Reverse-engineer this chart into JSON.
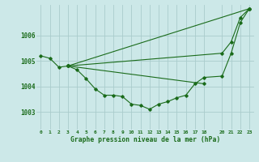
{
  "xlabel": "Graphe pression niveau de la mer (hPa)",
  "background_color": "#cce8e8",
  "grid_color": "#aacccc",
  "line_color": "#1a6b1a",
  "ylim": [
    1002.3,
    1007.2
  ],
  "xlim": [
    -0.5,
    23.5
  ],
  "yticks": [
    1003,
    1004,
    1005,
    1006
  ],
  "xticks": [
    0,
    1,
    2,
    3,
    4,
    5,
    6,
    7,
    8,
    9,
    10,
    11,
    12,
    13,
    14,
    15,
    16,
    17,
    18,
    20,
    21,
    22,
    23
  ],
  "xtick_labels": [
    "0",
    "1",
    "2",
    "3",
    "4",
    "5",
    "6",
    "7",
    "8",
    "9",
    "10",
    "11",
    "12",
    "13",
    "14",
    "15",
    "16",
    "17",
    "18",
    "20",
    "21",
    "22",
    "23"
  ],
  "series": [
    {
      "x": [
        0,
        1,
        2,
        3,
        20,
        21,
        22,
        23
      ],
      "y": [
        1005.2,
        1005.1,
        1004.75,
        1004.8,
        1005.3,
        1005.75,
        1006.7,
        1007.05
      ]
    },
    {
      "x": [
        3,
        4,
        5,
        6,
        7,
        8,
        9,
        10,
        11,
        12,
        13,
        14,
        15,
        16,
        17,
        18,
        20,
        21,
        22,
        23
      ],
      "y": [
        1004.8,
        1004.65,
        1004.3,
        1003.9,
        1003.65,
        1003.65,
        1003.6,
        1003.3,
        1003.25,
        1003.1,
        1003.3,
        1003.4,
        1003.55,
        1003.65,
        1004.1,
        1004.35,
        1004.4,
        1005.3,
        1006.5,
        1007.05
      ]
    },
    {
      "x": [
        3,
        23
      ],
      "y": [
        1004.8,
        1007.05
      ]
    },
    {
      "x": [
        3,
        18
      ],
      "y": [
        1004.8,
        1004.1
      ]
    }
  ]
}
